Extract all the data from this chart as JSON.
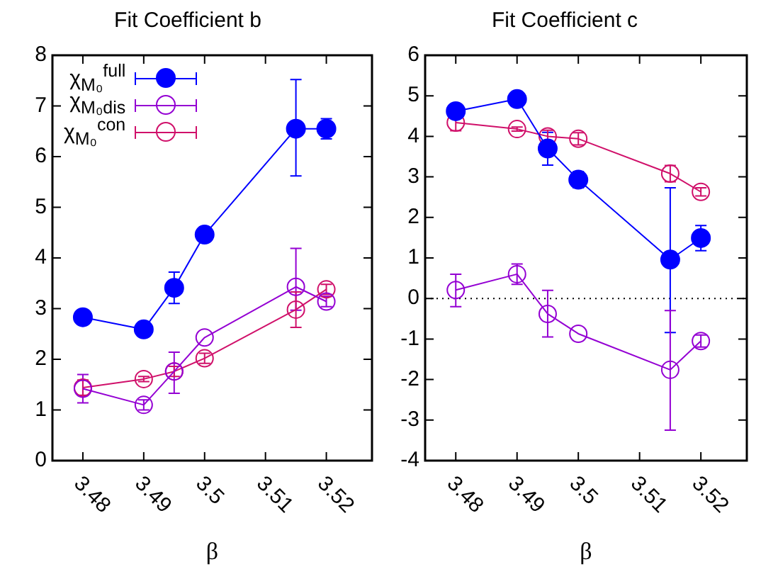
{
  "chart_data": [
    {
      "type": "line",
      "title": "Fit Coefficient b",
      "xlabel": "β",
      "xlim": [
        3.475,
        3.5275
      ],
      "xticks": [
        3.48,
        3.49,
        3.5,
        3.51,
        3.52
      ],
      "ylim": [
        0,
        8
      ],
      "yticks": [
        0,
        1,
        2,
        3,
        4,
        5,
        6,
        7,
        8
      ],
      "legend": "top left",
      "series": [
        {
          "name": "χ$_{M₀}$$^{full}$",
          "color": "#0000ff",
          "marker": "circle",
          "x": [
            3.48,
            3.49,
            3.495,
            3.5,
            3.515,
            3.52
          ],
          "values": [
            2.83,
            2.59,
            3.41,
            4.46,
            6.55,
            6.55
          ],
          "errors": [
            null,
            null,
            [
              3.1,
              3.72
            ],
            null,
            [
              5.62,
              7.52
            ],
            0.2
          ]
        },
        {
          "name": "χ$_{M₀}$$_{dis}$",
          "color": "#9400d3",
          "marker": "circle-open",
          "x": [
            3.48,
            3.49,
            3.495,
            3.5,
            3.515,
            3.52
          ],
          "values": [
            1.42,
            1.1,
            1.76,
            2.43,
            3.43,
            3.14
          ],
          "errors": [
            [
              1.14,
              1.7
            ],
            0.1,
            [
              1.33,
              2.14
            ],
            null,
            [
              2.97,
              4.19
            ],
            0.1
          ]
        },
        {
          "name": "χ$_{M₀}$$^{con}$",
          "color": "#d0106a",
          "marker": "circle-open",
          "x": [
            3.48,
            3.49,
            3.495,
            3.5,
            3.515,
            3.52
          ],
          "values": [
            1.44,
            1.61,
            1.76,
            2.02,
            2.98,
            3.38
          ],
          "errors": [
            0.15,
            0.05,
            0.1,
            0.1,
            0.35,
            0.1
          ]
        }
      ]
    },
    {
      "type": "line",
      "title": "Fit Coefficient c",
      "xlabel": "β",
      "xlim": [
        3.475,
        3.5275
      ],
      "xticks": [
        3.48,
        3.49,
        3.5,
        3.51,
        3.52
      ],
      "ylim": [
        -4,
        6
      ],
      "yticks": [
        -4,
        -3,
        -2,
        -1,
        0,
        1,
        2,
        3,
        4,
        5,
        6
      ],
      "ref_lines": [
        {
          "axis": "y",
          "value": 0,
          "color": "#000000",
          "line_style": "dotted"
        }
      ],
      "series": [
        {
          "color": "#0000ff",
          "marker": "circle",
          "x": [
            3.48,
            3.49,
            3.495,
            3.5,
            3.515,
            3.52
          ],
          "values": [
            4.62,
            4.92,
            3.7,
            2.93,
            0.96,
            1.49
          ],
          "errors": [
            null,
            null,
            [
              3.29,
              4.1
            ],
            0.2,
            [
              -0.84,
              2.73
            ],
            [
              1.18,
              1.8
            ]
          ]
        },
        {
          "color": "#9400d3",
          "marker": "circle-open",
          "x": [
            3.48,
            3.49,
            3.495,
            3.5,
            3.515,
            3.52
          ],
          "values": [
            0.21,
            0.6,
            -0.38,
            -0.87,
            -1.76,
            -1.05
          ],
          "errors": [
            [
              -0.2,
              0.6
            ],
            0.25,
            [
              -0.95,
              0.2
            ],
            null,
            [
              -3.25,
              -0.3
            ],
            0.15
          ]
        },
        {
          "color": "#d0106a",
          "marker": "circle-open",
          "x": [
            3.48,
            3.49,
            3.495,
            3.5,
            3.515,
            3.52
          ],
          "values": [
            4.34,
            4.18,
            4.0,
            3.94,
            3.08,
            2.63
          ],
          "errors": [
            0.2,
            0.05,
            0.15,
            0.15,
            0.2,
            0.1
          ]
        }
      ]
    }
  ]
}
